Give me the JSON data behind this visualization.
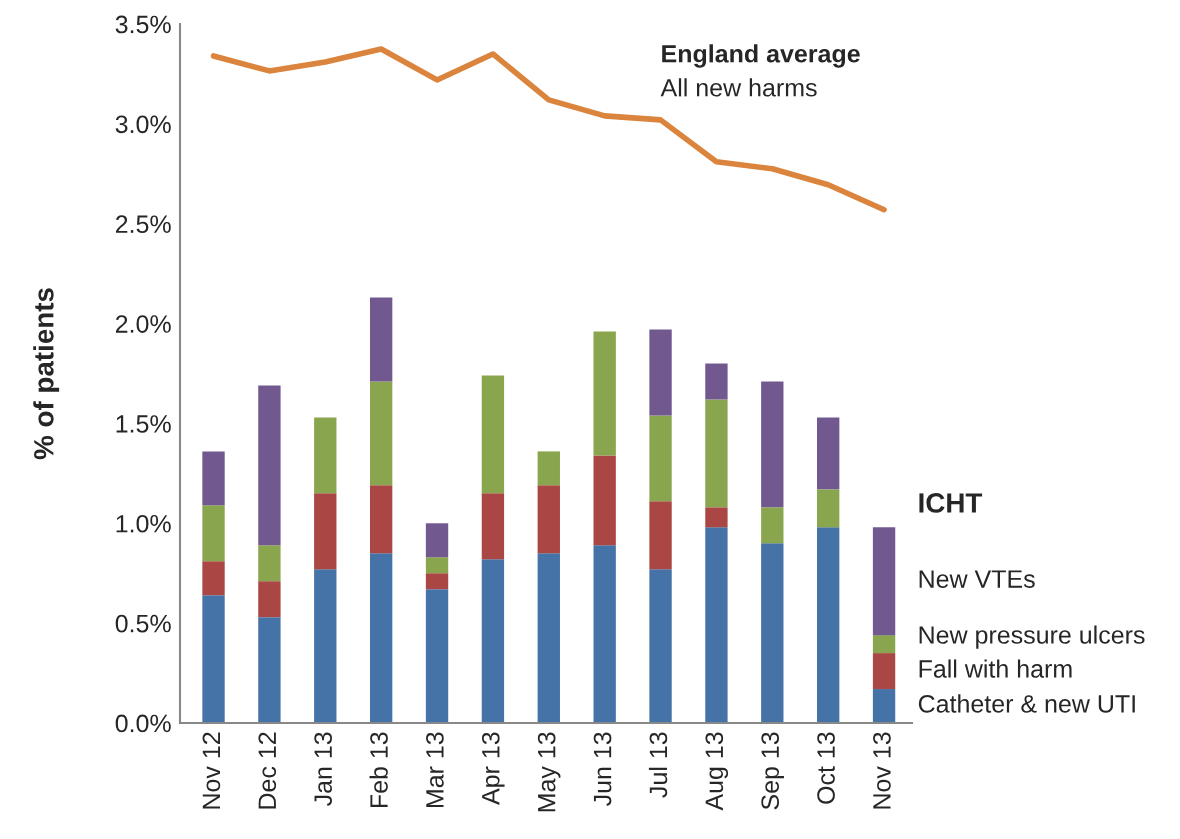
{
  "chart_data": {
    "type": "bar",
    "stacked": true,
    "ylabel": "% of patients",
    "legend_title": "ICHT",
    "categories": [
      "Nov 12",
      "Dec 12",
      "Jan 13",
      "Feb 13",
      "Mar 13",
      "Apr 13",
      "May 13",
      "Jun 13",
      "Jul 13",
      "Aug 13",
      "Sep 13",
      "Oct 13",
      "Nov 13"
    ],
    "series": [
      {
        "name": "Catheter & new UTI",
        "color": "#4573a7",
        "values": [
          0.64,
          0.53,
          0.77,
          0.85,
          0.67,
          0.82,
          0.85,
          0.89,
          0.77,
          0.98,
          0.9,
          0.98,
          0.17
        ]
      },
      {
        "name": "Fall with harm",
        "color": "#aa4644",
        "values": [
          0.17,
          0.18,
          0.38,
          0.34,
          0.08,
          0.33,
          0.34,
          0.45,
          0.34,
          0.1,
          0,
          0,
          0.18
        ]
      },
      {
        "name": "New pressure ulcers",
        "color": "#89a54e",
        "values": [
          0.28,
          0.18,
          0.38,
          0.52,
          0.08,
          0.59,
          0.17,
          0.62,
          0.43,
          0.54,
          0.18,
          0.19,
          0.09
        ]
      },
      {
        "name": "New VTEs",
        "color": "#71588f",
        "values": [
          0.27,
          0.8,
          0,
          0.42,
          0.17,
          0,
          0,
          0,
          0.43,
          0.18,
          0.63,
          0.36,
          0.54
        ]
      },
      {
        "name": "All new harms",
        "type": "line",
        "color": "#db843d",
        "values": [
          3.34,
          3.265,
          3.31,
          3.375,
          3.22,
          3.35,
          3.12,
          3.04,
          3.02,
          2.81,
          2.775,
          2.695,
          2.57
        ]
      }
    ],
    "annotations": [
      "England average"
    ],
    "ylim": [
      0,
      3.5
    ],
    "yticks": [
      {
        "value": 0,
        "label": "0.0%"
      },
      {
        "value": 0.5,
        "label": "0.5%"
      },
      {
        "value": 1.0,
        "label": "1.0%"
      },
      {
        "value": 1.5,
        "label": "1.5%"
      },
      {
        "value": 2.0,
        "label": "2.0%"
      },
      {
        "value": 2.5,
        "label": "2.5%"
      },
      {
        "value": 3.0,
        "label": "3.0%"
      },
      {
        "value": 3.5,
        "label": "3.5%"
      }
    ],
    "grid": false,
    "legend": "right"
  }
}
